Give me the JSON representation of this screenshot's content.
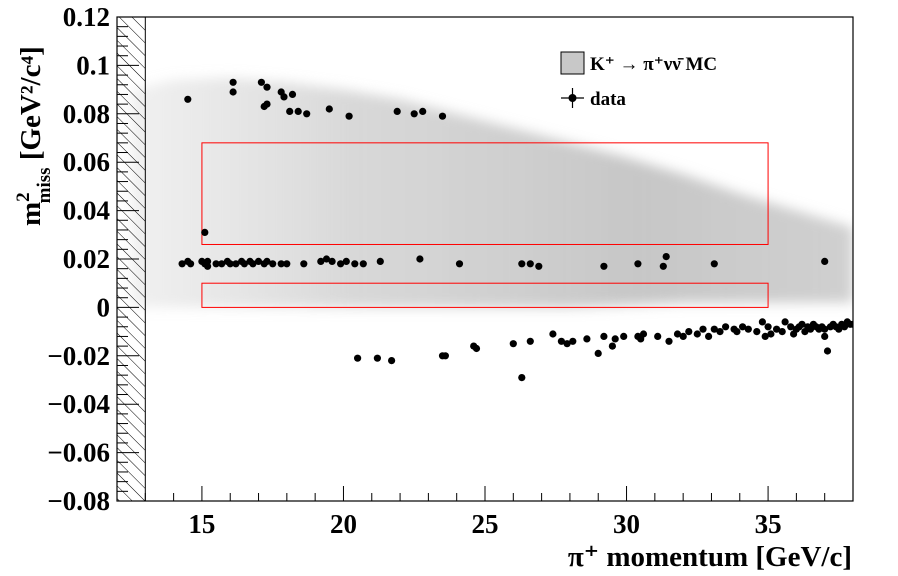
{
  "chart_data": {
    "type": "scatter",
    "title": "",
    "xlabel": "π⁺ momentum [GeV/c]",
    "ylabel_main": "m",
    "ylabel_sup": "2",
    "ylabel_sub": "miss",
    "ylabel_units": " [GeV²/c⁴]",
    "xlim": [
      12,
      38
    ],
    "ylim": [
      -0.08,
      0.12
    ],
    "x_ticks": [
      15,
      20,
      25,
      30,
      35
    ],
    "x_tick_labels": [
      "15",
      "20",
      "25",
      "30",
      "35"
    ],
    "y_ticks": [
      -0.08,
      -0.06,
      -0.04,
      -0.02,
      0,
      0.02,
      0.04,
      0.06,
      0.08,
      0.1,
      0.12
    ],
    "y_tick_labels": [
      "−0.08",
      "−0.06",
      "−0.04",
      "−0.02",
      "0",
      "0.02",
      "0.04",
      "0.06",
      "0.08",
      "0.1",
      "0.12"
    ],
    "excluded_region_x": [
      12,
      13
    ],
    "legend": {
      "placement": "top-right",
      "mc_label": "K⁺  →  π⁺νν̄ MC",
      "data_label": "data"
    },
    "signal_regions": [
      {
        "xmin": 15,
        "xmax": 35,
        "ymin": 0.026,
        "ymax": 0.068
      },
      {
        "xmin": 15,
        "xmax": 35,
        "ymin": 0.0,
        "ymax": 0.01
      }
    ],
    "colors": {
      "region_box": "#ff0000",
      "data_points": "#000000",
      "mc_fill": "#c8c8c8"
    },
    "mc_band": {
      "x": [
        12.5,
        14,
        16,
        18,
        20,
        22,
        24,
        26,
        28,
        30,
        32,
        34,
        36,
        38
      ],
      "upper": [
        0.09,
        0.094,
        0.095,
        0.093,
        0.09,
        0.086,
        0.08,
        0.074,
        0.068,
        0.062,
        0.055,
        0.047,
        0.04,
        0.033
      ],
      "lower": [
        0.0,
        0.0,
        0.0,
        0.0,
        0.0,
        0.0,
        0.0,
        0.0,
        0.0,
        0.001,
        0.002,
        0.002,
        0.002,
        0.002
      ]
    },
    "series": [
      {
        "name": "data",
        "points": [
          [
            14.5,
            0.086
          ],
          [
            16.1,
            0.093
          ],
          [
            16.1,
            0.089
          ],
          [
            17.1,
            0.093
          ],
          [
            17.3,
            0.091
          ],
          [
            17.3,
            0.084
          ],
          [
            17.2,
            0.083
          ],
          [
            17.8,
            0.089
          ],
          [
            17.9,
            0.087
          ],
          [
            18.2,
            0.088
          ],
          [
            18.1,
            0.081
          ],
          [
            18.4,
            0.081
          ],
          [
            18.7,
            0.08
          ],
          [
            19.5,
            0.082
          ],
          [
            20.2,
            0.079
          ],
          [
            21.9,
            0.081
          ],
          [
            22.5,
            0.08
          ],
          [
            22.8,
            0.081
          ],
          [
            23.5,
            0.079
          ],
          [
            15.1,
            0.031
          ],
          [
            14.3,
            0.018
          ],
          [
            14.5,
            0.019
          ],
          [
            14.6,
            0.018
          ],
          [
            15.0,
            0.019
          ],
          [
            15.1,
            0.018
          ],
          [
            15.2,
            0.017
          ],
          [
            15.2,
            0.019
          ],
          [
            15.5,
            0.018
          ],
          [
            15.7,
            0.018
          ],
          [
            15.9,
            0.019
          ],
          [
            16.0,
            0.018
          ],
          [
            16.2,
            0.018
          ],
          [
            16.4,
            0.019
          ],
          [
            16.5,
            0.018
          ],
          [
            16.7,
            0.019
          ],
          [
            16.8,
            0.018
          ],
          [
            17.0,
            0.019
          ],
          [
            17.2,
            0.018
          ],
          [
            17.3,
            0.019
          ],
          [
            17.5,
            0.018
          ],
          [
            17.8,
            0.018
          ],
          [
            18.0,
            0.018
          ],
          [
            18.6,
            0.018
          ],
          [
            19.2,
            0.019
          ],
          [
            19.4,
            0.02
          ],
          [
            19.6,
            0.019
          ],
          [
            19.9,
            0.018
          ],
          [
            20.1,
            0.019
          ],
          [
            20.4,
            0.018
          ],
          [
            20.7,
            0.018
          ],
          [
            21.3,
            0.019
          ],
          [
            22.7,
            0.02
          ],
          [
            24.1,
            0.018
          ],
          [
            26.3,
            0.018
          ],
          [
            26.6,
            0.018
          ],
          [
            26.9,
            0.017
          ],
          [
            29.2,
            0.017
          ],
          [
            30.4,
            0.018
          ],
          [
            31.3,
            0.017
          ],
          [
            31.4,
            0.021
          ],
          [
            33.1,
            0.018
          ],
          [
            37.0,
            0.019
          ],
          [
            20.5,
            -0.021
          ],
          [
            21.2,
            -0.021
          ],
          [
            21.7,
            -0.022
          ],
          [
            23.5,
            -0.02
          ],
          [
            23.6,
            -0.02
          ],
          [
            24.6,
            -0.016
          ],
          [
            24.7,
            -0.017
          ],
          [
            26.0,
            -0.015
          ],
          [
            26.3,
            -0.029
          ],
          [
            26.6,
            -0.014
          ],
          [
            27.4,
            -0.011
          ],
          [
            27.7,
            -0.014
          ],
          [
            27.9,
            -0.015
          ],
          [
            28.1,
            -0.014
          ],
          [
            28.6,
            -0.013
          ],
          [
            29.0,
            -0.019
          ],
          [
            29.2,
            -0.012
          ],
          [
            29.5,
            -0.016
          ],
          [
            29.6,
            -0.013
          ],
          [
            29.9,
            -0.012
          ],
          [
            30.4,
            -0.012
          ],
          [
            30.5,
            -0.013
          ],
          [
            30.6,
            -0.011
          ],
          [
            31.1,
            -0.012
          ],
          [
            31.5,
            -0.014
          ],
          [
            31.8,
            -0.011
          ],
          [
            32.0,
            -0.012
          ],
          [
            32.2,
            -0.01
          ],
          [
            32.5,
            -0.011
          ],
          [
            32.7,
            -0.009
          ],
          [
            32.9,
            -0.012
          ],
          [
            33.1,
            -0.009
          ],
          [
            33.3,
            -0.01
          ],
          [
            33.5,
            -0.008
          ],
          [
            33.8,
            -0.009
          ],
          [
            33.9,
            -0.01
          ],
          [
            34.1,
            -0.008
          ],
          [
            34.3,
            -0.009
          ],
          [
            34.6,
            -0.01
          ],
          [
            34.8,
            -0.006
          ],
          [
            35.0,
            -0.008
          ],
          [
            35.1,
            -0.011
          ],
          [
            35.3,
            -0.009
          ],
          [
            35.5,
            -0.01
          ],
          [
            35.6,
            -0.006
          ],
          [
            35.8,
            -0.008
          ],
          [
            36.0,
            -0.009
          ],
          [
            36.1,
            -0.008
          ],
          [
            36.2,
            -0.007
          ],
          [
            36.4,
            -0.008
          ],
          [
            36.5,
            -0.009
          ],
          [
            36.6,
            -0.007
          ],
          [
            36.7,
            -0.008
          ],
          [
            36.8,
            -0.009
          ],
          [
            36.9,
            -0.008
          ],
          [
            37.0,
            -0.009
          ],
          [
            37.0,
            -0.012
          ],
          [
            37.1,
            -0.018
          ],
          [
            37.2,
            -0.008
          ],
          [
            37.3,
            -0.007
          ],
          [
            37.4,
            -0.008
          ],
          [
            37.5,
            -0.009
          ],
          [
            37.6,
            -0.007
          ],
          [
            37.7,
            -0.008
          ],
          [
            37.8,
            -0.006
          ],
          [
            37.9,
            -0.007
          ],
          [
            38.0,
            -0.007
          ],
          [
            36.3,
            -0.01
          ],
          [
            35.9,
            -0.011
          ],
          [
            34.9,
            -0.012
          ]
        ]
      }
    ]
  }
}
